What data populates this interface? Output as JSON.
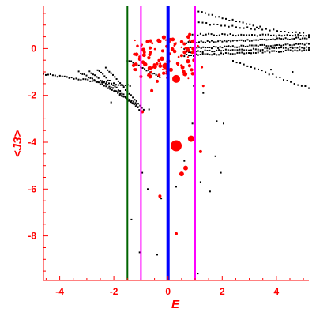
{
  "colors": {
    "axis": "#ff0000",
    "background": "#ffffff",
    "black_points": "#000000",
    "red_points": "#ff0000",
    "line_green": "#006400",
    "line_magenta": "#ff00ff",
    "line_blue": "#0000ff"
  },
  "chart_data": {
    "type": "scatter",
    "title": "",
    "xlabel": "E",
    "ylabel": "<J3>",
    "xlim": [
      -4.6,
      5.2
    ],
    "ylim": [
      -9.9,
      1.8
    ],
    "x_ticks": [
      -4,
      -2,
      0,
      2,
      4
    ],
    "y_ticks": [
      0,
      -2,
      -4,
      -6,
      -8
    ],
    "x_tick_labels": [
      "-4",
      "-2",
      "0",
      "2",
      "4"
    ],
    "y_tick_labels": [
      "0",
      "-2",
      "-4",
      "-6",
      "-8"
    ],
    "grid": false,
    "legend": "none",
    "vertical_lines": [
      {
        "x": -1.5,
        "color": "line_green",
        "weight": "thin"
      },
      {
        "x": -1.0,
        "color": "line_magenta",
        "weight": "thin"
      },
      {
        "x": 0.0,
        "color": "line_blue",
        "weight": "thick"
      },
      {
        "x": 1.0,
        "color": "line_magenta",
        "weight": "thin"
      }
    ],
    "black_series": {
      "bands": [
        {
          "x": [
            -4.6,
            -1.4
          ],
          "y": [
            -1.1,
            -1.6
          ],
          "count": 38
        },
        {
          "x": [
            -3.3,
            -1.2
          ],
          "y": [
            -1.0,
            -2.3
          ],
          "count": 30
        },
        {
          "x": [
            -2.9,
            -1.1
          ],
          "y": [
            -1.0,
            -2.5
          ],
          "count": 28
        },
        {
          "x": [
            -2.6,
            -1.0
          ],
          "y": [
            -0.9,
            -2.7
          ],
          "count": 26
        },
        {
          "x": [
            -2.3,
            -0.9
          ],
          "y": [
            -0.8,
            -2.6
          ],
          "count": 22
        },
        {
          "x": [
            -1.5,
            -0.3
          ],
          "y": [
            -0.5,
            -1.2
          ],
          "count": 18
        },
        {
          "x": [
            0.6,
            5.2
          ],
          "y": [
            0.25,
            0.45
          ],
          "count": 60
        },
        {
          "x": [
            0.6,
            5.2
          ],
          "y": [
            0.0,
            0.2
          ],
          "count": 60
        },
        {
          "x": [
            0.6,
            5.2
          ],
          "y": [
            -0.15,
            0.05
          ],
          "count": 55
        },
        {
          "x": [
            0.6,
            5.2
          ],
          "y": [
            -0.3,
            -0.05
          ],
          "count": 55
        },
        {
          "x": [
            0.8,
            5.2
          ],
          "y": [
            0.6,
            0.55
          ],
          "count": 45
        },
        {
          "x": [
            1.0,
            5.0
          ],
          "y": [
            1.1,
            0.65
          ],
          "count": 30
        },
        {
          "x": [
            1.0,
            3.4
          ],
          "y": [
            1.6,
            0.9
          ],
          "count": 20
        },
        {
          "x": [
            2.4,
            5.2
          ],
          "y": [
            -0.5,
            -1.7
          ],
          "count": 22
        }
      ],
      "extra_points": [
        {
          "x": -1.35,
          "y": -7.3
        },
        {
          "x": -1.05,
          "y": -8.7
        },
        {
          "x": -0.95,
          "y": -5.3
        },
        {
          "x": -0.75,
          "y": -6.0
        },
        {
          "x": -0.4,
          "y": -8.8
        },
        {
          "x": -0.25,
          "y": -6.4
        },
        {
          "x": 0.3,
          "y": -5.9
        },
        {
          "x": 0.6,
          "y": -4.8
        },
        {
          "x": 1.2,
          "y": -5.7
        },
        {
          "x": 1.55,
          "y": -6.1
        },
        {
          "x": 1.95,
          "y": -5.3
        },
        {
          "x": 1.75,
          "y": -4.6
        },
        {
          "x": 1.8,
          "y": -3.1
        },
        {
          "x": 2.05,
          "y": -3.2
        },
        {
          "x": 0.9,
          "y": -3.2
        },
        {
          "x": -0.7,
          "y": -2.6
        },
        {
          "x": 1.3,
          "y": -1.9
        },
        {
          "x": 0.95,
          "y": -1.6
        },
        {
          "x": 3.8,
          "y": -0.9
        },
        {
          "x": 4.6,
          "y": -1.0
        },
        {
          "x": 1.1,
          "y": -9.6
        },
        {
          "x": -2.1,
          "y": -2.3
        }
      ]
    },
    "red_series": {
      "points": [
        {
          "x": 0.3,
          "y": -4.15,
          "size": 7
        },
        {
          "x": 0.3,
          "y": -1.3,
          "size": 5
        },
        {
          "x": -0.1,
          "y": -0.75,
          "size": 4
        },
        {
          "x": 0.85,
          "y": -3.85,
          "size": 4
        },
        {
          "x": 0.5,
          "y": -5.35,
          "size": 3
        },
        {
          "x": 0.65,
          "y": -5.1,
          "size": 3
        },
        {
          "x": -0.3,
          "y": -6.3,
          "size": 2
        },
        {
          "x": 0.3,
          "y": -7.9,
          "size": 2
        },
        {
          "x": -0.95,
          "y": -2.7,
          "size": 2
        },
        {
          "x": 1.2,
          "y": -4.4,
          "size": 2
        },
        {
          "x": -0.6,
          "y": -1.8,
          "size": 2
        },
        {
          "x": -0.4,
          "y": -1.4,
          "size": 2
        },
        {
          "x": 0.6,
          "y": -1.1,
          "size": 2
        },
        {
          "x": 1.3,
          "y": -1.6,
          "size": 1.5
        },
        {
          "x": 0.8,
          "y": 0.6,
          "size": 2
        },
        {
          "x": 0.9,
          "y": 0.3,
          "size": 2
        },
        {
          "x": 0.6,
          "y": 0.2,
          "size": 2
        },
        {
          "x": 0.5,
          "y": -0.3,
          "size": 2
        },
        {
          "x": -0.2,
          "y": -0.1,
          "size": 2
        },
        {
          "x": -1.2,
          "y": -0.9,
          "size": 2
        },
        {
          "x": -1.0,
          "y": -1.2,
          "size": 2
        },
        {
          "x": -0.7,
          "y": -1.1,
          "size": 2
        },
        {
          "x": -0.5,
          "y": -0.7,
          "size": 2
        },
        {
          "x": 0.95,
          "y": -0.5,
          "size": 2
        },
        {
          "x": 1.1,
          "y": 0.1,
          "size": 1.5
        },
        {
          "x": 1.25,
          "y": -0.8,
          "size": 1.5
        }
      ],
      "cluster": {
        "x": [
          -1.3,
          1.0
        ],
        "y": [
          -1.3,
          0.5
        ],
        "count": 90
      }
    }
  }
}
